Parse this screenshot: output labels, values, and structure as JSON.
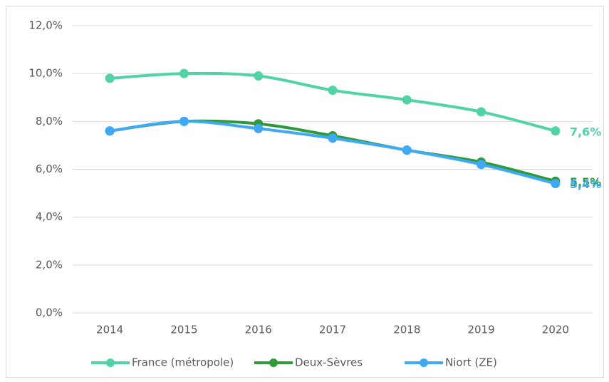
{
  "chart_data": {
    "type": "line",
    "categories": [
      "2014",
      "2015",
      "2016",
      "2017",
      "2018",
      "2019",
      "2020"
    ],
    "series": [
      {
        "name": "France (métropole)",
        "color": "#52d3a6",
        "values": [
          9.8,
          10.0,
          9.9,
          9.3,
          8.9,
          8.4,
          7.6
        ],
        "value_labels": [
          null,
          null,
          null,
          null,
          null,
          null,
          "7,6%"
        ]
      },
      {
        "name": "Deux-Sèvres",
        "color": "#2e9a3a",
        "values": [
          7.6,
          8.0,
          7.9,
          7.4,
          6.8,
          6.3,
          5.5
        ],
        "value_labels": [
          null,
          null,
          null,
          null,
          null,
          null,
          "5,5%"
        ]
      },
      {
        "name": "Niort (ZE)",
        "color": "#3fa9f5",
        "values": [
          7.6,
          8.0,
          7.7,
          7.3,
          6.8,
          6.2,
          5.4
        ],
        "value_labels": [
          null,
          null,
          null,
          null,
          null,
          null,
          "5,4%"
        ]
      }
    ],
    "ylim": [
      0,
      12
    ],
    "yticks": [
      {
        "value": 0,
        "label": "0,0%"
      },
      {
        "value": 2,
        "label": "2,0%"
      },
      {
        "value": 4,
        "label": "4,0%"
      },
      {
        "value": 6,
        "label": "6,0%"
      },
      {
        "value": 8,
        "label": "8,0%"
      },
      {
        "value": 10,
        "label": "10,0%"
      },
      {
        "value": 12,
        "label": "12,0%"
      }
    ],
    "grid": true,
    "legend": "bottom"
  }
}
